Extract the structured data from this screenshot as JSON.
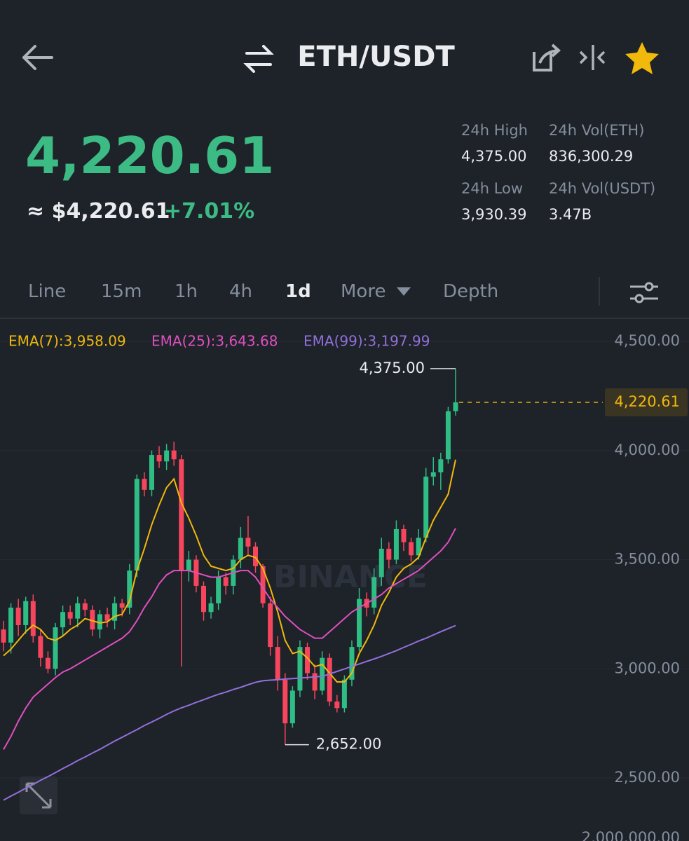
{
  "header": {
    "pair": "ETH/USDT"
  },
  "ticker": {
    "last": "4,220.61",
    "fiat": "≈ $4,220.61",
    "change": "+7.01%"
  },
  "stats": [
    {
      "label": "24h High",
      "value": "4,375.00"
    },
    {
      "label": "24h Vol(ETH)",
      "value": "836,300.29"
    },
    {
      "label": "24h Low",
      "value": "3,930.39"
    },
    {
      "label": "24h Vol(USDT)",
      "value": "3.47B"
    }
  ],
  "tabs": [
    "Line",
    "15m",
    "1h",
    "4h",
    "1d",
    "More",
    "Depth"
  ],
  "chart_data": {
    "type": "candlestick",
    "watermark": "BINANCE",
    "up_color": "#2ebd85",
    "down_color": "#f6465d",
    "open": [
      3180,
      3120,
      3280,
      3200,
      3310,
      3150,
      3050,
      3000,
      3190,
      3260,
      3230,
      3300,
      3270,
      3180,
      3250,
      3220,
      3300,
      3280,
      3450,
      3870,
      3820,
      3980,
      3950,
      4000,
      3960,
      3450,
      3500,
      3380,
      3260,
      3300,
      3420,
      3380,
      3500,
      3600,
      3560,
      3470,
      3300,
      3100,
      2950,
      2750,
      2900,
      3100,
      2980,
      2900,
      3050,
      2850,
      2820,
      2950,
      3100,
      3320,
      3280,
      3420,
      3550,
      3500,
      3640,
      3580,
      3520,
      3600,
      3880,
      3900,
      3960,
      4180
    ],
    "high": [
      3220,
      3300,
      3320,
      3330,
      3340,
      3180,
      3080,
      3210,
      3290,
      3290,
      3330,
      3320,
      3290,
      3270,
      3280,
      3330,
      3320,
      3480,
      3890,
      3900,
      4000,
      4020,
      4030,
      4040,
      3980,
      3540,
      3520,
      3400,
      3330,
      3450,
      3440,
      3520,
      3650,
      3700,
      3580,
      3480,
      3330,
      3150,
      2980,
      2920,
      3130,
      3120,
      3020,
      3080,
      3070,
      2880,
      2970,
      3130,
      3370,
      3350,
      3460,
      3600,
      3580,
      3680,
      3660,
      3600,
      3640,
      3920,
      3970,
      3990,
      4200,
      4375
    ],
    "low": [
      3080,
      3070,
      3150,
      3160,
      3120,
      3010,
      2980,
      2970,
      3150,
      3200,
      3190,
      3240,
      3150,
      3140,
      3190,
      3180,
      3240,
      3250,
      3420,
      3790,
      3790,
      3920,
      3910,
      3930,
      3010,
      3400,
      3350,
      3220,
      3230,
      3270,
      3340,
      3340,
      3460,
      3520,
      3440,
      3280,
      3060,
      2900,
      2652,
      2730,
      2870,
      2950,
      2860,
      2880,
      2830,
      2800,
      2800,
      2920,
      3080,
      3240,
      3250,
      3380,
      3460,
      3480,
      3540,
      3490,
      3500,
      3580,
      3840,
      3820,
      3940,
      4160
    ],
    "close": [
      3120,
      3280,
      3200,
      3310,
      3150,
      3050,
      3000,
      3190,
      3260,
      3230,
      3300,
      3270,
      3180,
      3250,
      3220,
      3300,
      3280,
      3450,
      3870,
      3820,
      3980,
      3950,
      4000,
      3960,
      3450,
      3500,
      3380,
      3260,
      3300,
      3420,
      3380,
      3500,
      3600,
      3560,
      3470,
      3300,
      3100,
      2950,
      2750,
      2900,
      3100,
      2980,
      2900,
      3050,
      2850,
      2820,
      2950,
      3100,
      3320,
      3280,
      3420,
      3550,
      3500,
      3640,
      3580,
      3520,
      3600,
      3880,
      3900,
      3960,
      4180,
      4220.61
    ],
    "series": [
      {
        "name": "EMA(7):3,958.09",
        "color": "#f0b90b",
        "values": [
          3060,
          3090,
          3130,
          3170,
          3200,
          3180,
          3140,
          3130,
          3150,
          3180,
          3200,
          3230,
          3220,
          3210,
          3215,
          3240,
          3250,
          3310,
          3450,
          3550,
          3660,
          3750,
          3830,
          3870,
          3760,
          3690,
          3610,
          3520,
          3470,
          3460,
          3450,
          3460,
          3500,
          3520,
          3510,
          3460,
          3370,
          3260,
          3130,
          3070,
          3080,
          3050,
          3010,
          3020,
          2980,
          2940,
          2940,
          2980,
          3070,
          3130,
          3200,
          3290,
          3350,
          3420,
          3460,
          3480,
          3510,
          3600,
          3680,
          3740,
          3800,
          3958.09
        ]
      },
      {
        "name": "EMA(25):3,643.68",
        "color": "#e04fc0",
        "values": [
          2630,
          2690,
          2760,
          2820,
          2870,
          2900,
          2930,
          2960,
          2985,
          3000,
          3020,
          3040,
          3060,
          3080,
          3100,
          3120,
          3140,
          3170,
          3220,
          3280,
          3330,
          3390,
          3430,
          3450,
          3450,
          3450,
          3440,
          3430,
          3420,
          3420,
          3430,
          3440,
          3450,
          3450,
          3420,
          3370,
          3320,
          3280,
          3240,
          3210,
          3180,
          3160,
          3140,
          3140,
          3170,
          3200,
          3230,
          3260,
          3280,
          3300,
          3320,
          3340,
          3370,
          3390,
          3410,
          3430,
          3450,
          3480,
          3510,
          3540,
          3580,
          3643.68
        ]
      },
      {
        "name": "EMA(99):3,197.99",
        "color": "#9370db",
        "values": [
          2398,
          2417,
          2434,
          2453,
          2470,
          2489,
          2506,
          2524,
          2543,
          2560,
          2579,
          2596,
          2614,
          2631,
          2650,
          2669,
          2686,
          2704,
          2721,
          2740,
          2756,
          2773,
          2791,
          2807,
          2821,
          2833,
          2846,
          2858,
          2871,
          2883,
          2893,
          2905,
          2915,
          2927,
          2938,
          2945,
          2948,
          2950,
          2953,
          2955,
          2958,
          2960,
          2963,
          2965,
          2976,
          2988,
          2999,
          3011,
          3022,
          3034,
          3045,
          3057,
          3070,
          3083,
          3098,
          3112,
          3127,
          3140,
          3155,
          3170,
          3184,
          3197.99
        ]
      }
    ],
    "ylim": [
      2211,
      4603
    ],
    "yticks": [
      {
        "value": 2500,
        "label": "2,500.00"
      },
      {
        "value": 3000,
        "label": "3,000.00"
      },
      {
        "value": 3500,
        "label": "3,500.00"
      },
      {
        "value": 4000,
        "label": "4,000.00"
      },
      {
        "value": 4500,
        "label": "4,500.00"
      }
    ],
    "last_price": {
      "value": 4220.61,
      "label": "4,220.61"
    },
    "high_label": {
      "value": 4375,
      "label": "4,375.00"
    },
    "low_label": {
      "value": 2652,
      "label": "2,652.00"
    },
    "volume_axis_label": "2,000,000.00",
    "grid": true
  }
}
